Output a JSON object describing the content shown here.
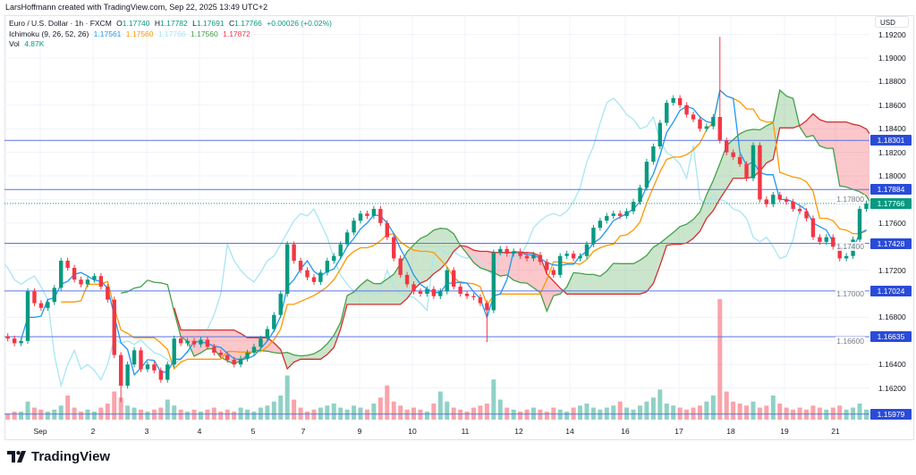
{
  "header": {
    "attribution": "LarsHoffmann created with TradingView.com, Sep 22, 2025 13:49 UTC+2"
  },
  "legend": {
    "symbol": "Euro / U.S. Dollar · 1h · FXCM",
    "o_label": "O",
    "o": "1.17740",
    "h_label": "H",
    "h": "1.17782",
    "l_label": "L",
    "l": "1.17691",
    "c_label": "C",
    "c": "1.17766",
    "change": "+0.00026 (+0.02%)",
    "ichimoku_label": "Ichimoku (9, 26, 52, 26)",
    "ichimoku_values": [
      "1.17561",
      "1.17560",
      "1.17766",
      "1.17560",
      "1.17872"
    ],
    "vol_label": "Vol",
    "vol": "4.87K"
  },
  "footer": {
    "logo_text": "TradingView"
  },
  "chart_data": {
    "type": "candlestick",
    "symbol": "EURUSD",
    "interval": "1h",
    "currency": "USD",
    "ylim": [
      1.1588,
      1.1925
    ],
    "grid": true,
    "y_ticks": [
      "1.19200",
      "1.19000",
      "1.18800",
      "1.18600",
      "1.18400",
      "1.18200",
      "1.18000",
      "1.17800",
      "1.17600",
      "1.17400",
      "1.17200",
      "1.17000",
      "1.16800",
      "1.16600",
      "1.16400",
      "1.16200"
    ],
    "x_ticks": [
      "Sep",
      "2",
      "3",
      "4",
      "5",
      "7",
      "9",
      "10",
      "11",
      "12",
      "14",
      "16",
      "17",
      "18",
      "19",
      "21"
    ],
    "closes": [
      1.1662,
      1.1658,
      1.166,
      1.1702,
      1.1692,
      1.1688,
      1.1693,
      1.1705,
      1.1728,
      1.1722,
      1.1712,
      1.1708,
      1.1712,
      1.1715,
      1.1706,
      1.1695,
      1.1648,
      1.1622,
      1.164,
      1.1652,
      1.1636,
      1.164,
      1.1635,
      1.1627,
      1.164,
      1.1662,
      1.1658,
      1.166,
      1.1657,
      1.1661,
      1.1655,
      1.165,
      1.1648,
      1.1644,
      1.164,
      1.1645,
      1.165,
      1.1655,
      1.1662,
      1.167,
      1.1682,
      1.17,
      1.1742,
      1.1728,
      1.172,
      1.1714,
      1.171,
      1.1718,
      1.1728,
      1.1732,
      1.1742,
      1.1752,
      1.1762,
      1.1768,
      1.1766,
      1.1772,
      1.176,
      1.1748,
      1.173,
      1.1716,
      1.1708,
      1.1702,
      1.17,
      1.1704,
      1.1698,
      1.1702,
      1.172,
      1.1706,
      1.17,
      1.1698,
      1.1697,
      1.1692,
      1.1686,
      1.1735,
      1.1738,
      1.1734,
      1.1736,
      1.1732,
      1.173,
      1.1733,
      1.1727,
      1.172,
      1.1716,
      1.1732,
      1.1734,
      1.173,
      1.1732,
      1.1742,
      1.1756,
      1.1762,
      1.1766,
      1.1768,
      1.1766,
      1.177,
      1.1778,
      1.179,
      1.1812,
      1.1825,
      1.1845,
      1.1862,
      1.1866,
      1.186,
      1.1852,
      1.1848,
      1.184,
      1.1842,
      1.185,
      1.183,
      1.182,
      1.1816,
      1.181,
      1.1798,
      1.1826,
      1.178,
      1.1776,
      1.1784,
      1.178,
      1.1778,
      1.1772,
      1.177,
      1.1764,
      1.1748,
      1.1744,
      1.1748,
      1.174,
      1.173,
      1.1732,
      1.1746,
      1.1772,
      1.17766
    ],
    "wick_extremes": [
      {
        "index": 17,
        "low": 1.1608
      },
      {
        "index": 72,
        "low": 1.1659
      },
      {
        "index": 107,
        "high": 1.1918
      }
    ],
    "volumes_k": [
      3,
      4,
      4,
      9,
      6,
      5,
      4,
      5,
      7,
      12,
      6,
      4,
      5,
      4,
      6,
      8,
      14,
      11,
      7,
      6,
      5,
      4,
      5,
      6,
      10,
      7,
      5,
      4,
      5,
      4,
      5,
      6,
      4,
      5,
      4,
      6,
      5,
      4,
      6,
      7,
      9,
      12,
      22,
      10,
      6,
      4,
      5,
      6,
      7,
      8,
      6,
      5,
      7,
      6,
      5,
      8,
      11,
      17,
      9,
      7,
      5,
      6,
      5,
      4,
      8,
      14,
      9,
      6,
      5,
      4,
      6,
      7,
      8,
      20,
      10,
      6,
      5,
      4,
      5,
      6,
      5,
      4,
      6,
      5,
      4,
      6,
      7,
      8,
      6,
      5,
      6,
      7,
      9,
      6,
      5,
      7,
      9,
      11,
      15,
      8,
      7,
      6,
      5,
      6,
      7,
      9,
      12,
      60,
      14,
      9,
      8,
      7,
      9,
      6,
      7,
      12,
      8,
      6,
      5,
      6,
      5,
      7,
      6,
      5,
      6,
      7,
      5,
      6,
      8,
      5
    ],
    "horizontal_lines": [
      "1.18301",
      "1.17884",
      "1.17428",
      "1.17024",
      "1.16635",
      "1.15979"
    ],
    "last_price": "1.17766",
    "ichimoku": {
      "conversion": 9,
      "base": 26,
      "lagging_span_b": 52,
      "displacement": 26
    },
    "colors": {
      "up": "#089981",
      "down": "#f23645",
      "tenkan": "#2196f3",
      "kijun": "#ff9800",
      "chikou": "#a8e6f2",
      "span_a": "#43a047",
      "span_b": "#d32f2f",
      "cloud_up": "rgba(67,160,71,0.28)",
      "cloud_down": "rgba(242,54,69,0.28)",
      "hline": "#5b73e0",
      "hline_tag": "#2a4bd7",
      "last_price_tag": "#089981"
    }
  }
}
